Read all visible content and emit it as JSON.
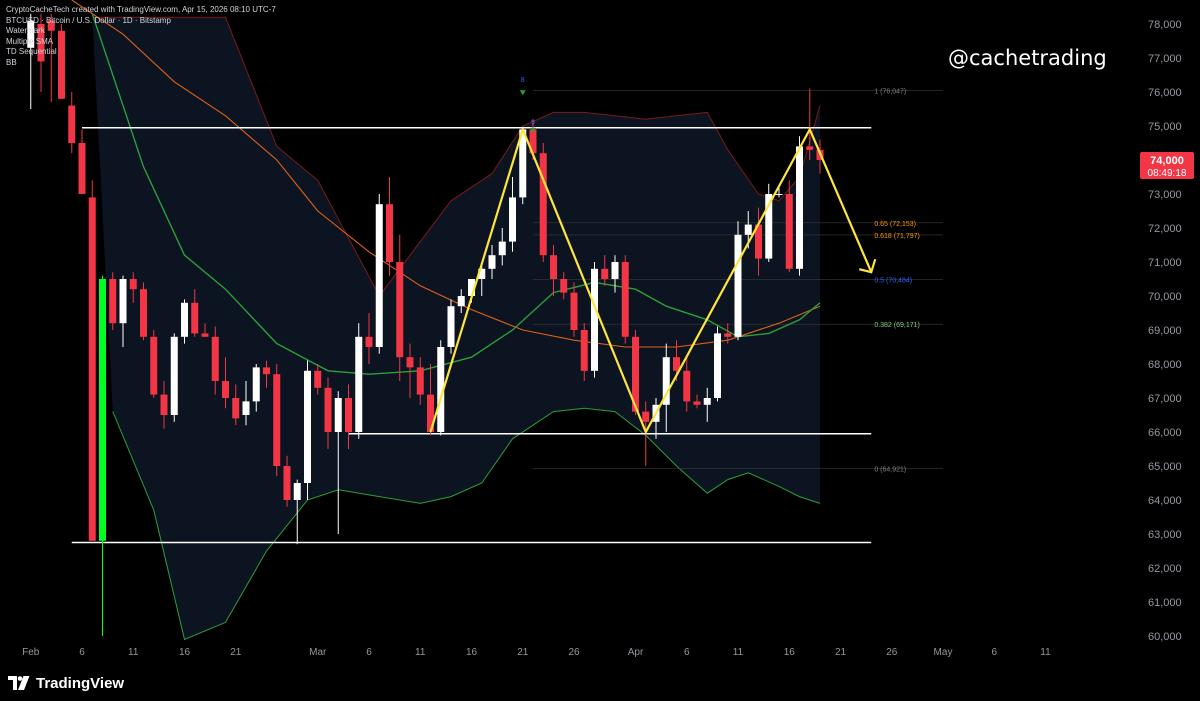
{
  "header": {
    "line1": "CryptoCacheTech created with TradingView.com, Apr 15, 2026 08:10 UTC-7",
    "line2": "BTCUSD · Bitcoin / U.S. Dollar · 1D · Bitstamp",
    "indicators": [
      "Watermark",
      "Multiple SMA",
      "TD Sequential",
      "BB"
    ]
  },
  "watermark_handle": "@cachetrading",
  "brand": {
    "name": "TradingView",
    "icon": "tradingview-logo-icon"
  },
  "price_tag": {
    "price": "74,000",
    "countdown": "08:49:18",
    "color": "#f23645"
  },
  "colors": {
    "up": "#ffffff",
    "down": "#f23645",
    "highlight_up": "#00ff22",
    "pattern": "#ffe53b",
    "sma_short": "#e0601b",
    "sma_long": "#2e9e3a",
    "bb_band": "#7a1a1a",
    "bb_lower": "#2e9e3a",
    "bb_fill": "#0b1420"
  },
  "chart_data": {
    "type": "candlestick",
    "ylim": [
      60000,
      78200
    ],
    "y_ticks": [
      "60,000",
      "61,000",
      "62,000",
      "63,000",
      "64,000",
      "65,000",
      "66,000",
      "67,000",
      "68,000",
      "69,000",
      "70,000",
      "71,000",
      "72,000",
      "73,000",
      "74,000",
      "75,000",
      "76,000",
      "77,000",
      "78,000"
    ],
    "x_tick_labels": [
      {
        "label": "26",
        "day": -14
      },
      {
        "label": "Feb",
        "day": -9
      },
      {
        "label": "6",
        "day": -4
      },
      {
        "label": "11",
        "day": 1
      },
      {
        "label": "16",
        "day": 6
      },
      {
        "label": "21",
        "day": 11
      },
      {
        "label": "Mar",
        "day": 19
      },
      {
        "label": "6",
        "day": 24
      },
      {
        "label": "11",
        "day": 29
      },
      {
        "label": "16",
        "day": 34
      },
      {
        "label": "21",
        "day": 39
      },
      {
        "label": "26",
        "day": 44
      },
      {
        "label": "Apr",
        "day": 50
      },
      {
        "label": "6",
        "day": 55
      },
      {
        "label": "11",
        "day": 60
      },
      {
        "label": "16",
        "day": 65
      },
      {
        "label": "21",
        "day": 70
      },
      {
        "label": "26",
        "day": 75
      },
      {
        "label": "May",
        "day": 80
      },
      {
        "label": "6",
        "day": 85
      },
      {
        "label": "11",
        "day": 90
      }
    ],
    "candles": [
      {
        "d": -9,
        "o": 77300,
        "h": 78300,
        "l": 75500,
        "c": 78100
      },
      {
        "d": -8,
        "o": 78000,
        "h": 78300,
        "l": 76000,
        "c": 76900
      },
      {
        "d": -7,
        "o": 78100,
        "h": 78300,
        "l": 75700,
        "c": 77800
      },
      {
        "d": -6,
        "o": 77800,
        "h": 78000,
        "l": 75800,
        "c": 75800
      },
      {
        "d": -5,
        "o": 75600,
        "h": 76000,
        "l": 74200,
        "c": 74500
      },
      {
        "d": -4,
        "o": 74500,
        "h": 74900,
        "l": 73000,
        "c": 73000
      },
      {
        "d": -3,
        "o": 72900,
        "h": 73400,
        "l": 62800,
        "c": 62800
      },
      {
        "d": -2,
        "o": 62800,
        "h": 70600,
        "l": 60000,
        "c": 70500,
        "hl": true
      },
      {
        "d": -1,
        "o": 70500,
        "h": 70700,
        "l": 69000,
        "c": 69200
      },
      {
        "d": 0,
        "o": 69200,
        "h": 70600,
        "l": 68500,
        "c": 70500
      },
      {
        "d": 1,
        "o": 70500,
        "h": 70700,
        "l": 69800,
        "c": 70200
      },
      {
        "d": 2,
        "o": 70200,
        "h": 70400,
        "l": 68700,
        "c": 68800
      },
      {
        "d": 3,
        "o": 68800,
        "h": 69000,
        "l": 67000,
        "c": 67100
      },
      {
        "d": 4,
        "o": 67100,
        "h": 67500,
        "l": 66100,
        "c": 66500
      },
      {
        "d": 5,
        "o": 66500,
        "h": 68900,
        "l": 66300,
        "c": 68800
      },
      {
        "d": 6,
        "o": 68800,
        "h": 69900,
        "l": 68600,
        "c": 69800
      },
      {
        "d": 7,
        "o": 69800,
        "h": 70200,
        "l": 68800,
        "c": 68900
      },
      {
        "d": 8,
        "o": 68900,
        "h": 69200,
        "l": 68800,
        "c": 68800
      },
      {
        "d": 9,
        "o": 68800,
        "h": 69100,
        "l": 67100,
        "c": 67500
      },
      {
        "d": 10,
        "o": 67500,
        "h": 68200,
        "l": 66700,
        "c": 67000
      },
      {
        "d": 11,
        "o": 67000,
        "h": 67400,
        "l": 66200,
        "c": 66400
      },
      {
        "d": 12,
        "o": 66500,
        "h": 67500,
        "l": 66200,
        "c": 66900
      },
      {
        "d": 13,
        "o": 66900,
        "h": 68000,
        "l": 66600,
        "c": 67900
      },
      {
        "d": 14,
        "o": 67900,
        "h": 68100,
        "l": 67300,
        "c": 67700
      },
      {
        "d": 15,
        "o": 67700,
        "h": 68000,
        "l": 64700,
        "c": 65000
      },
      {
        "d": 16,
        "o": 65000,
        "h": 65300,
        "l": 63800,
        "c": 64000
      },
      {
        "d": 17,
        "o": 64000,
        "h": 64600,
        "l": 62700,
        "c": 64500
      },
      {
        "d": 18,
        "o": 64500,
        "h": 68100,
        "l": 64000,
        "c": 67800
      },
      {
        "d": 19,
        "o": 67800,
        "h": 68000,
        "l": 67100,
        "c": 67300
      },
      {
        "d": 20,
        "o": 67300,
        "h": 67600,
        "l": 65500,
        "c": 66000
      },
      {
        "d": 21,
        "o": 66000,
        "h": 67200,
        "l": 63000,
        "c": 67000
      },
      {
        "d": 22,
        "o": 67000,
        "h": 67400,
        "l": 65500,
        "c": 66000
      },
      {
        "d": 23,
        "o": 66000,
        "h": 69200,
        "l": 65800,
        "c": 68800
      },
      {
        "d": 24,
        "o": 68800,
        "h": 69500,
        "l": 68000,
        "c": 68500
      },
      {
        "d": 25,
        "o": 68500,
        "h": 73000,
        "l": 68300,
        "c": 72700
      },
      {
        "d": 26,
        "o": 72700,
        "h": 73500,
        "l": 70600,
        "c": 71000
      },
      {
        "d": 27,
        "o": 71000,
        "h": 71800,
        "l": 67500,
        "c": 68200
      },
      {
        "d": 28,
        "o": 68200,
        "h": 68600,
        "l": 67000,
        "c": 67900
      },
      {
        "d": 29,
        "o": 67900,
        "h": 68200,
        "l": 66800,
        "c": 67100
      },
      {
        "d": 30,
        "o": 67100,
        "h": 68000,
        "l": 65900,
        "c": 66000
      },
      {
        "d": 31,
        "o": 66000,
        "h": 68700,
        "l": 65900,
        "c": 68500
      },
      {
        "d": 32,
        "o": 68500,
        "h": 69900,
        "l": 68300,
        "c": 69700
      },
      {
        "d": 33,
        "o": 69700,
        "h": 70200,
        "l": 69500,
        "c": 70000
      },
      {
        "d": 34,
        "o": 70000,
        "h": 70500,
        "l": 69800,
        "c": 70500
      },
      {
        "d": 35,
        "o": 70500,
        "h": 70900,
        "l": 70000,
        "c": 70800
      },
      {
        "d": 36,
        "o": 70800,
        "h": 71500,
        "l": 70500,
        "c": 71200
      },
      {
        "d": 37,
        "o": 71200,
        "h": 72000,
        "l": 70900,
        "c": 71600
      },
      {
        "d": 38,
        "o": 71600,
        "h": 73500,
        "l": 71300,
        "c": 72900
      },
      {
        "d": 39,
        "o": 72900,
        "h": 74900,
        "l": 72700,
        "c": 74900
      },
      {
        "d": 40,
        "o": 74900,
        "h": 75200,
        "l": 74000,
        "c": 74200
      },
      {
        "d": 41,
        "o": 74200,
        "h": 74500,
        "l": 71000,
        "c": 71200
      },
      {
        "d": 42,
        "o": 71200,
        "h": 71500,
        "l": 70000,
        "c": 70500
      },
      {
        "d": 43,
        "o": 70500,
        "h": 70700,
        "l": 69900,
        "c": 70100
      },
      {
        "d": 44,
        "o": 70100,
        "h": 70400,
        "l": 68800,
        "c": 69000
      },
      {
        "d": 45,
        "o": 69000,
        "h": 69200,
        "l": 67500,
        "c": 67800
      },
      {
        "d": 46,
        "o": 67800,
        "h": 71000,
        "l": 67600,
        "c": 70800
      },
      {
        "d": 47,
        "o": 70800,
        "h": 71200,
        "l": 70300,
        "c": 70500
      },
      {
        "d": 48,
        "o": 70500,
        "h": 71200,
        "l": 70100,
        "c": 71000
      },
      {
        "d": 49,
        "o": 71000,
        "h": 71200,
        "l": 68600,
        "c": 68800
      },
      {
        "d": 50,
        "o": 68800,
        "h": 69000,
        "l": 66500,
        "c": 66600
      },
      {
        "d": 51,
        "o": 66600,
        "h": 66900,
        "l": 65000,
        "c": 66300
      },
      {
        "d": 52,
        "o": 66300,
        "h": 67000,
        "l": 65800,
        "c": 66800
      },
      {
        "d": 53,
        "o": 66800,
        "h": 68600,
        "l": 66000,
        "c": 68200
      },
      {
        "d": 54,
        "o": 68200,
        "h": 68700,
        "l": 67500,
        "c": 67800
      },
      {
        "d": 55,
        "o": 67800,
        "h": 68200,
        "l": 66600,
        "c": 66900
      },
      {
        "d": 56,
        "o": 66900,
        "h": 67100,
        "l": 66700,
        "c": 66800
      },
      {
        "d": 57,
        "o": 66800,
        "h": 67300,
        "l": 66300,
        "c": 67000
      },
      {
        "d": 58,
        "o": 67000,
        "h": 69100,
        "l": 66900,
        "c": 68900
      },
      {
        "d": 59,
        "o": 68900,
        "h": 69200,
        "l": 68600,
        "c": 68800
      },
      {
        "d": 60,
        "o": 68800,
        "h": 72200,
        "l": 68700,
        "c": 71800
      },
      {
        "d": 61,
        "o": 71800,
        "h": 72500,
        "l": 71400,
        "c": 72100
      },
      {
        "d": 62,
        "o": 72100,
        "h": 72600,
        "l": 70600,
        "c": 71100
      },
      {
        "d": 63,
        "o": 71100,
        "h": 73300,
        "l": 71000,
        "c": 73000
      },
      {
        "d": 64,
        "o": 73000,
        "h": 73200,
        "l": 72900,
        "c": 73000
      },
      {
        "d": 65,
        "o": 73000,
        "h": 73400,
        "l": 70700,
        "c": 70800
      },
      {
        "d": 66,
        "o": 70800,
        "h": 74700,
        "l": 70600,
        "c": 74400
      },
      {
        "d": 67,
        "o": 74400,
        "h": 76100,
        "l": 74000,
        "c": 74300
      },
      {
        "d": 68,
        "o": 74300,
        "h": 74600,
        "l": 73600,
        "c": 74000
      }
    ],
    "sma_short": [
      [
        -5,
        78900
      ],
      [
        0,
        77700
      ],
      [
        5,
        76300
      ],
      [
        10,
        75300
      ],
      [
        15,
        74000
      ],
      [
        19,
        72500
      ],
      [
        24,
        71300
      ],
      [
        29,
        70300
      ],
      [
        34,
        69600
      ],
      [
        39,
        69000
      ],
      [
        44,
        68700
      ],
      [
        49,
        68500
      ],
      [
        54,
        68500
      ],
      [
        59,
        68700
      ],
      [
        64,
        69200
      ],
      [
        68,
        69700
      ]
    ],
    "sma_long": [
      [
        -3,
        78300
      ],
      [
        2,
        73800
      ],
      [
        6,
        71200
      ],
      [
        10,
        70200
      ],
      [
        15,
        68600
      ],
      [
        20,
        67800
      ],
      [
        24,
        67700
      ],
      [
        29,
        67800
      ],
      [
        34,
        68200
      ],
      [
        38,
        69000
      ],
      [
        42,
        70100
      ],
      [
        46,
        70400
      ],
      [
        50,
        70200
      ],
      [
        53,
        69700
      ],
      [
        57,
        69300
      ],
      [
        60,
        68800
      ],
      [
        63,
        68900
      ],
      [
        66,
        69300
      ],
      [
        68,
        69800
      ]
    ],
    "bb_upper": [
      [
        -3,
        78200
      ],
      [
        4,
        78200
      ],
      [
        10,
        78200
      ],
      [
        15,
        74400
      ],
      [
        19,
        73400
      ],
      [
        22,
        71700
      ],
      [
        25,
        70000
      ],
      [
        28,
        71200
      ],
      [
        32,
        72800
      ],
      [
        36,
        73600
      ],
      [
        39,
        75000
      ],
      [
        42,
        75400
      ],
      [
        45,
        75400
      ],
      [
        48,
        75300
      ],
      [
        51,
        75200
      ],
      [
        54,
        75300
      ],
      [
        57,
        75400
      ],
      [
        59,
        74300
      ],
      [
        62,
        73000
      ],
      [
        64,
        72800
      ],
      [
        66,
        73500
      ],
      [
        68,
        75600
      ]
    ],
    "bb_lower": [
      [
        -1,
        66600
      ],
      [
        3,
        63700
      ],
      [
        6,
        59900
      ],
      [
        10,
        60400
      ],
      [
        14,
        62500
      ],
      [
        18,
        64000
      ],
      [
        21,
        64300
      ],
      [
        25,
        64100
      ],
      [
        29,
        63900
      ],
      [
        32,
        64100
      ],
      [
        35,
        64500
      ],
      [
        38,
        65800
      ],
      [
        42,
        66600
      ],
      [
        45,
        66700
      ],
      [
        48,
        66600
      ],
      [
        51,
        65900
      ],
      [
        54,
        65000
      ],
      [
        57,
        64200
      ],
      [
        59,
        64600
      ],
      [
        61,
        64800
      ],
      [
        64,
        64400
      ],
      [
        66,
        64100
      ],
      [
        68,
        63900
      ]
    ],
    "levels": [
      {
        "price": 74950,
        "day_from": -4,
        "day_to": 73
      },
      {
        "price": 65950,
        "day_from": 22,
        "day_to": 73
      },
      {
        "price": 62750,
        "day_from": -5,
        "day_to": 73
      }
    ],
    "fib_levels": [
      {
        "label": "1 (76,047)",
        "price": 76047,
        "color": "#808080"
      },
      {
        "label": "0.65 (72,153)",
        "price": 72153,
        "color": "#ff9800"
      },
      {
        "label": "0.618 (71,797)",
        "price": 71797,
        "color": "#ff9800"
      },
      {
        "label": "0.5 (70,484)",
        "price": 70484,
        "color": "#2962ff"
      },
      {
        "label": "0.382 (69,171)",
        "price": 69171,
        "color": "#81c784"
      },
      {
        "label": "0 (64,921)",
        "price": 64921,
        "color": "#808080"
      }
    ],
    "pattern_path": [
      [
        30,
        66000
      ],
      [
        39,
        74900
      ],
      [
        51,
        66000
      ],
      [
        67,
        74900
      ],
      [
        73,
        70700
      ]
    ],
    "td_labels": [
      {
        "text": "8",
        "day": 39,
        "price": 76300,
        "color": "#2962ff"
      },
      {
        "text": "9",
        "day": 40,
        "price": 75050,
        "color": "#2962ff"
      }
    ]
  }
}
